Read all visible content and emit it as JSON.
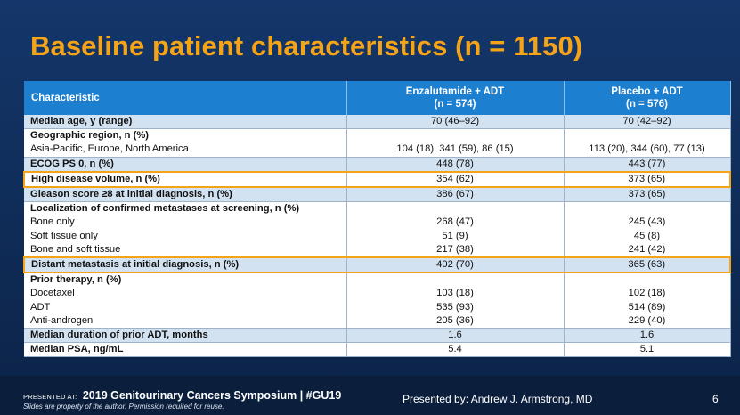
{
  "slide": {
    "title": "Baseline patient characteristics (n = 1150)"
  },
  "table": {
    "headers": {
      "characteristic": "Characteristic",
      "arm1_line1": "Enzalutamide + ADT",
      "arm1_line2": "(n = 574)",
      "arm2_line1": "Placebo + ADT",
      "arm2_line2": "(n = 576)"
    },
    "rows": [
      {
        "label": "Median age, y (range)",
        "v1": "70 (46–92)",
        "v2": "70 (42–92)"
      },
      {
        "label": "Geographic region, n (%)",
        "sub": "Asia-Pacific, Europe, North America",
        "v1": "104 (18), 341 (59), 86 (15)",
        "v2": "113 (20), 344 (60), 77 (13)"
      },
      {
        "label": "ECOG PS 0, n (%)",
        "v1": "448 (78)",
        "v2": "443 (77)"
      },
      {
        "label": "High disease volume, n (%)",
        "v1": "354 (62)",
        "v2": "373 (65)"
      },
      {
        "label": "Gleason score ≥8 at initial diagnosis, n (%)",
        "v1": "386 (67)",
        "v2": "373 (65)"
      },
      {
        "label": "Localization of confirmed metastases at screening, n (%)",
        "subs": [
          {
            "label": "Bone only",
            "v1": "268 (47)",
            "v2": "245 (43)"
          },
          {
            "label": "Soft tissue only",
            "v1": "51 (9)",
            "v2": "45 (8)"
          },
          {
            "label": "Bone and soft tissue",
            "v1": "217 (38)",
            "v2": "241 (42)"
          }
        ]
      },
      {
        "label": "Distant metastasis at initial diagnosis, n (%)",
        "v1": "402 (70)",
        "v2": "365 (63)"
      },
      {
        "label": "Prior therapy, n (%)",
        "subs": [
          {
            "label": "Docetaxel",
            "v1": "103 (18)",
            "v2": "102 (18)"
          },
          {
            "label": "ADT",
            "v1": "535 (93)",
            "v2": "514 (89)"
          },
          {
            "label": "Anti-androgen",
            "v1": "205 (36)",
            "v2": "229 (40)"
          }
        ]
      },
      {
        "label": "Median duration of prior ADT, months",
        "v1": "1.6",
        "v2": "1.6"
      },
      {
        "label": "Median PSA, ng/mL",
        "v1": "5.4",
        "v2": "5.1"
      }
    ],
    "highlight_color": "#f5a418"
  },
  "footer": {
    "presented_at_label": "PRESENTED AT:",
    "event": "2019 Genitourinary Cancers Symposium  |  #GU19",
    "disclaimer": "Slides are property of the author. Permission required for reuse.",
    "presenter": "Presented by: Andrew J. Armstrong, MD",
    "page_number": "6"
  },
  "colors": {
    "title": "#f5a418",
    "header_bg": "#1d7fd0",
    "row_shade": "#d3e2f1",
    "background": "#0f2c57"
  }
}
